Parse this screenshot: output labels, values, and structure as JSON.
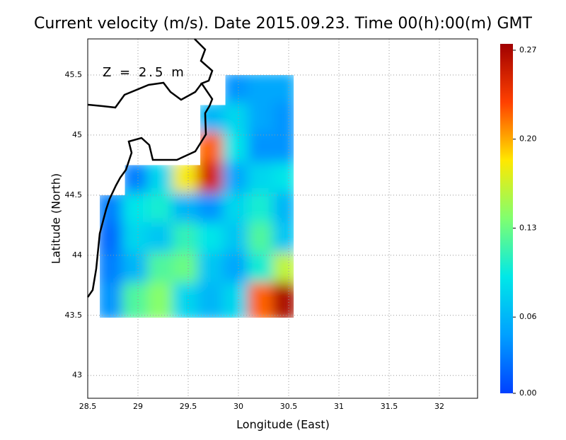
{
  "chart_data": {
    "type": "heatmap",
    "title": "Current velocity (m/s). Date 2015.09.23. Time 00(h):00(m) GMT",
    "annotation": "Z = 2.5 m",
    "xlabel": "Longitude (East)",
    "ylabel": "Latitude (North)",
    "xlim": [
      28.5,
      32.38
    ],
    "ylim": [
      42.81,
      45.8
    ],
    "xticks": [
      28.5,
      29,
      29.5,
      30,
      30.5,
      31,
      31.5,
      32
    ],
    "yticks": [
      43,
      43.5,
      44,
      44.5,
      45,
      45.5
    ],
    "grid": true,
    "lon_edges": [
      28.62,
      28.87,
      29.12,
      29.37,
      29.62,
      29.87,
      30.12,
      30.37,
      30.55
    ],
    "lat_edges": [
      45.5,
      45.25,
      45,
      44.75,
      44.5,
      44.25,
      44,
      43.75,
      43.48
    ],
    "values": [
      [
        null,
        null,
        null,
        null,
        null,
        0.04,
        0.05,
        0.05
      ],
      [
        null,
        null,
        null,
        null,
        0.06,
        0.08,
        0.05,
        0.04
      ],
      [
        null,
        null,
        null,
        null,
        0.22,
        0.09,
        0.04,
        0.04
      ],
      [
        null,
        0.03,
        0.08,
        0.18,
        0.25,
        0.05,
        0.08,
        0.09
      ],
      [
        0.03,
        0.09,
        0.1,
        0.06,
        0.04,
        0.08,
        0.1,
        0.06
      ],
      [
        0.02,
        0.08,
        0.07,
        0.11,
        0.09,
        0.07,
        0.12,
        0.07
      ],
      [
        0.03,
        0.06,
        0.12,
        0.13,
        0.07,
        0.05,
        0.1,
        0.16
      ],
      [
        0.04,
        0.12,
        0.14,
        0.08,
        0.06,
        0.08,
        0.22,
        0.27
      ]
    ],
    "clim": [
      0,
      0.275
    ],
    "cticks": [
      {
        "value": 0,
        "label": "0.00"
      },
      {
        "value": 0.06,
        "label": "0.06"
      },
      0.13,
      {
        "value": 0.2,
        "label": "0.20"
      },
      0.27
    ],
    "colormap": [
      "#0040ff",
      "#00a0ff",
      "#00e8e8",
      "#80ff70",
      "#ffe800",
      "#ff4000",
      "#a00000"
    ]
  }
}
